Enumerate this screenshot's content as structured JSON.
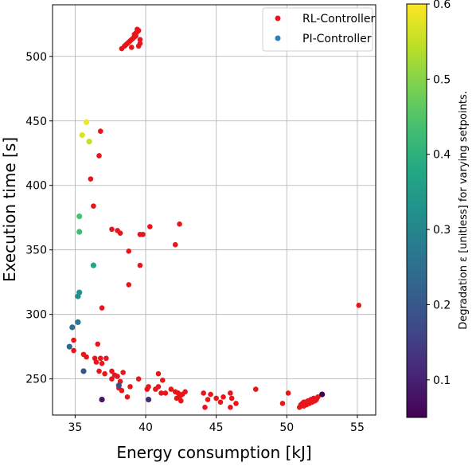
{
  "chart_data": {
    "type": "scatter",
    "xlabel": "Energy consumption [kJ]",
    "ylabel": "Execution time [s]",
    "xlim": [
      33.4,
      56.3
    ],
    "ylim": [
      222,
      540
    ],
    "xticks": [
      35,
      40,
      45,
      50,
      55
    ],
    "yticks": [
      250,
      300,
      350,
      400,
      450,
      500
    ],
    "grid": true,
    "legend_position": "top-right",
    "colorbar": {
      "label": "Degradation ε [unitless] for varying setpoints.",
      "colormap": "viridis",
      "range": [
        0.05,
        0.6
      ],
      "ticks": [
        0.1,
        0.2,
        0.3,
        0.4,
        0.5,
        0.6
      ]
    },
    "series": [
      {
        "name": "RL-Controller",
        "color": "#e8151a",
        "points": [
          [
            38.3,
            506
          ],
          [
            38.5,
            508
          ],
          [
            38.6,
            509
          ],
          [
            38.7,
            510
          ],
          [
            38.8,
            511
          ],
          [
            38.9,
            512
          ],
          [
            39.0,
            513
          ],
          [
            39.1,
            514
          ],
          [
            39.2,
            515
          ],
          [
            39.3,
            516
          ],
          [
            39.2,
            517
          ],
          [
            39.3,
            518
          ],
          [
            39.4,
            519
          ],
          [
            39.5,
            520
          ],
          [
            39.4,
            521
          ],
          [
            39.5,
            508
          ],
          [
            39.6,
            510
          ],
          [
            39.6,
            513
          ],
          [
            39.0,
            507
          ],
          [
            36.8,
            442
          ],
          [
            36.7,
            423
          ],
          [
            36.1,
            405
          ],
          [
            36.3,
            384
          ],
          [
            37.6,
            366
          ],
          [
            38.0,
            365
          ],
          [
            38.2,
            363
          ],
          [
            39.6,
            362
          ],
          [
            39.8,
            362
          ],
          [
            40.3,
            368
          ],
          [
            42.4,
            370
          ],
          [
            42.1,
            354
          ],
          [
            38.8,
            349
          ],
          [
            39.6,
            338
          ],
          [
            38.8,
            323
          ],
          [
            36.9,
            305
          ],
          [
            55.1,
            307
          ],
          [
            34.9,
            280
          ],
          [
            34.9,
            272
          ],
          [
            36.6,
            277
          ],
          [
            35.8,
            267
          ],
          [
            35.6,
            269
          ],
          [
            36.4,
            266
          ],
          [
            36.5,
            263
          ],
          [
            36.8,
            266
          ],
          [
            36.9,
            262
          ],
          [
            37.2,
            266
          ],
          [
            36.7,
            256
          ],
          [
            37.1,
            254
          ],
          [
            37.6,
            256
          ],
          [
            37.8,
            253
          ],
          [
            38.4,
            255
          ],
          [
            39.5,
            250
          ],
          [
            38.9,
            244
          ],
          [
            38.2,
            248
          ],
          [
            38.0,
            252
          ],
          [
            37.6,
            250
          ],
          [
            38.1,
            243
          ],
          [
            38.3,
            241
          ],
          [
            38.7,
            236
          ],
          [
            40.9,
            254
          ],
          [
            41.2,
            249
          ],
          [
            40.2,
            244
          ],
          [
            40.1,
            242
          ],
          [
            40.7,
            242
          ],
          [
            40.9,
            244
          ],
          [
            41.1,
            239
          ],
          [
            41.4,
            239
          ],
          [
            41.8,
            242
          ],
          [
            42.1,
            240
          ],
          [
            42.3,
            239
          ],
          [
            42.4,
            236
          ],
          [
            42.6,
            238
          ],
          [
            42.8,
            240
          ],
          [
            42.2,
            235
          ],
          [
            42.5,
            233
          ],
          [
            44.1,
            239
          ],
          [
            44.4,
            234
          ],
          [
            44.6,
            238
          ],
          [
            44.2,
            228
          ],
          [
            45.0,
            235
          ],
          [
            45.3,
            232
          ],
          [
            45.5,
            236
          ],
          [
            46.0,
            239
          ],
          [
            46.1,
            235
          ],
          [
            46.0,
            228
          ],
          [
            46.4,
            231
          ],
          [
            47.8,
            242
          ],
          [
            49.7,
            231
          ],
          [
            50.1,
            239
          ],
          [
            50.9,
            228
          ],
          [
            51.0,
            230
          ],
          [
            51.1,
            231
          ],
          [
            51.2,
            229
          ],
          [
            51.3,
            232
          ],
          [
            51.4,
            230
          ],
          [
            51.5,
            233
          ],
          [
            51.6,
            231
          ],
          [
            51.7,
            234
          ],
          [
            51.8,
            232
          ],
          [
            51.9,
            235
          ],
          [
            52.0,
            233
          ],
          [
            52.1,
            234
          ],
          [
            52.2,
            236
          ],
          [
            51.2,
            232
          ]
        ]
      },
      {
        "name": "PI-Controller",
        "color": "#2c7fb8",
        "points": [
          {
            "x": 35.8,
            "y": 449,
            "e": 0.59
          },
          {
            "x": 35.5,
            "y": 439,
            "e": 0.57
          },
          {
            "x": 36.0,
            "y": 434,
            "e": 0.55
          },
          {
            "x": 35.3,
            "y": 376,
            "e": 0.44
          },
          {
            "x": 35.3,
            "y": 364,
            "e": 0.43
          },
          {
            "x": 36.3,
            "y": 338,
            "e": 0.37
          },
          {
            "x": 35.3,
            "y": 317,
            "e": 0.33
          },
          {
            "x": 35.2,
            "y": 314,
            "e": 0.32
          },
          {
            "x": 35.2,
            "y": 294,
            "e": 0.27
          },
          {
            "x": 34.8,
            "y": 290,
            "e": 0.25
          },
          {
            "x": 34.6,
            "y": 275,
            "e": 0.23
          },
          {
            "x": 35.6,
            "y": 256,
            "e": 0.19
          },
          {
            "x": 38.1,
            "y": 245,
            "e": 0.18
          },
          {
            "x": 36.9,
            "y": 234,
            "e": 0.08
          },
          {
            "x": 40.2,
            "y": 234,
            "e": 0.12
          },
          {
            "x": 52.5,
            "y": 238,
            "e": 0.05
          }
        ]
      }
    ]
  }
}
